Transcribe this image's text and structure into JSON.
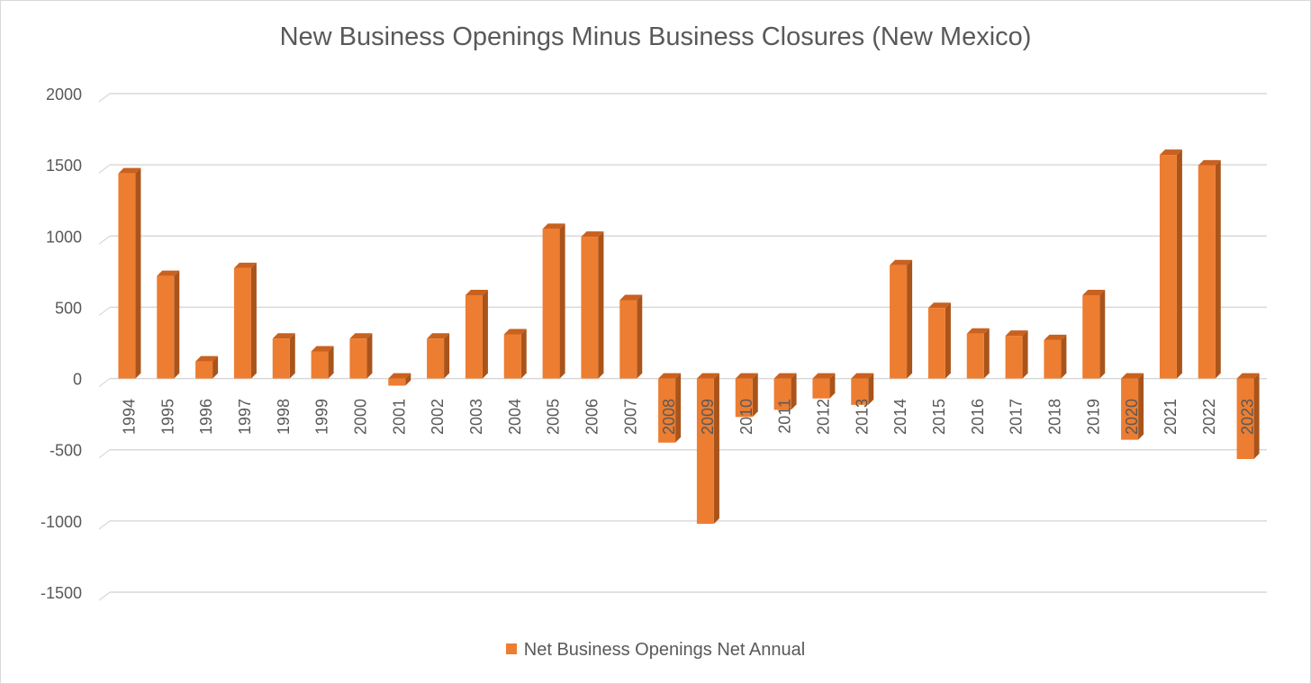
{
  "chart_data": {
    "type": "bar",
    "title": "New Business Openings Minus Business Closures (New Mexico)",
    "categories": [
      "1994",
      "1995",
      "1996",
      "1997",
      "1998",
      "1999",
      "2000",
      "2001",
      "2002",
      "2003",
      "2004",
      "2005",
      "2006",
      "2007",
      "2008",
      "2009",
      "2010",
      "2011",
      "2012",
      "2013",
      "2014",
      "2015",
      "2016",
      "2017",
      "2018",
      "2019",
      "2020",
      "2021",
      "2022",
      "2023"
    ],
    "series": [
      {
        "name": "Net Business Openings Net Annual",
        "values": [
          1440,
          720,
          120,
          775,
          280,
          190,
          280,
          -50,
          280,
          585,
          310,
          1050,
          995,
          550,
          -450,
          -1020,
          -270,
          -220,
          -140,
          -185,
          795,
          495,
          315,
          300,
          270,
          585,
          -430,
          1570,
          1495,
          -565
        ]
      }
    ],
    "ylim": [
      -1500,
      2000
    ],
    "yticks": [
      2000,
      1500,
      1000,
      500,
      0,
      -500,
      -1000,
      -1500
    ],
    "grid": true,
    "legend_position": "bottom",
    "colors": {
      "bar_front": "#ED7D31",
      "bar_side": "#A9541B",
      "bar_top": "#C9611F",
      "grid": "#D9D9D9",
      "text": "#595959"
    }
  }
}
